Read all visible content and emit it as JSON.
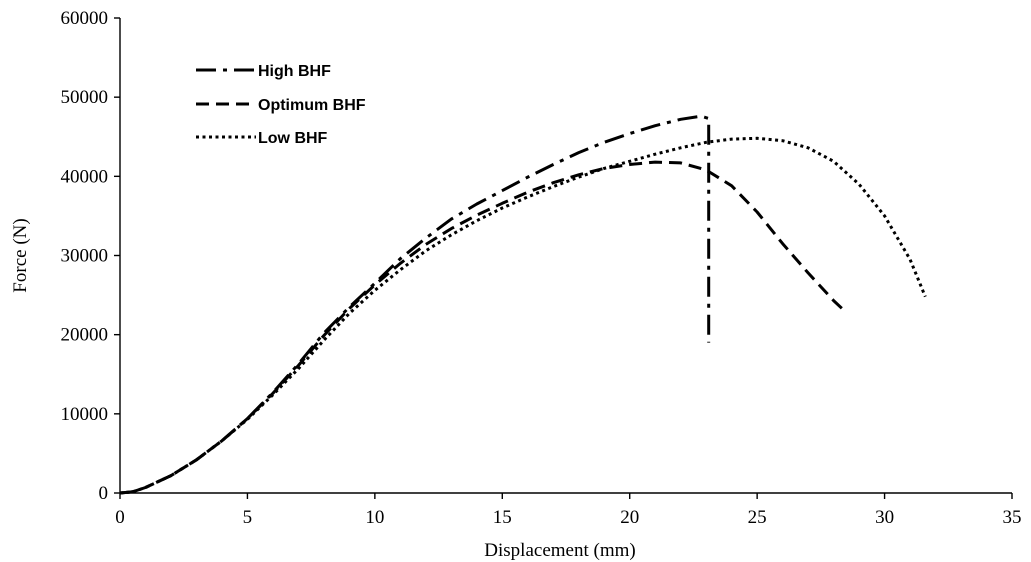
{
  "chart_data": {
    "type": "line",
    "title": "",
    "xlabel": "Displacement (mm)",
    "ylabel": "Force (N)",
    "xlim": [
      0,
      35
    ],
    "ylim": [
      0,
      60000
    ],
    "x_ticks": [
      "0",
      "5",
      "10",
      "15",
      "20",
      "25",
      "30",
      "35"
    ],
    "y_ticks": [
      "0",
      "10000",
      "20000",
      "30000",
      "40000",
      "50000",
      "60000"
    ],
    "grid": false,
    "legend_position": "top-left",
    "series": [
      {
        "name": "High BHF",
        "dash": "dash-dot",
        "color": "#000000",
        "x": [
          0,
          0.5,
          1,
          2,
          3,
          4,
          5,
          6,
          7,
          8,
          9,
          10,
          11,
          12,
          13,
          14,
          15,
          16,
          17,
          18,
          19,
          20,
          21,
          22,
          22.8,
          23.1,
          23.1
        ],
        "y": [
          0,
          150,
          700,
          2200,
          4200,
          6600,
          9400,
          12700,
          16300,
          20200,
          23500,
          26500,
          29600,
          32200,
          34600,
          36500,
          38200,
          39900,
          41500,
          43000,
          44300,
          45400,
          46400,
          47200,
          47600,
          47300,
          19000
        ]
      },
      {
        "name": "Optimum BHF",
        "dash": "dash",
        "color": "#000000",
        "x": [
          0,
          0.5,
          1,
          2,
          3,
          4,
          5,
          6,
          7,
          8,
          9,
          10,
          11,
          12,
          13,
          14,
          15,
          16,
          17,
          18,
          19,
          20,
          21,
          22,
          23,
          24,
          25,
          26,
          27,
          28,
          28.5
        ],
        "y": [
          0,
          150,
          700,
          2200,
          4200,
          6600,
          9400,
          12600,
          16100,
          19900,
          23300,
          26300,
          29000,
          31400,
          33400,
          35100,
          36600,
          38000,
          39200,
          40200,
          41000,
          41500,
          41800,
          41700,
          40800,
          38800,
          35500,
          31500,
          27800,
          24300,
          22800
        ]
      },
      {
        "name": "Low BHF",
        "dash": "dot",
        "color": "#000000",
        "x": [
          0,
          0.5,
          1,
          2,
          3,
          4,
          5,
          6,
          7,
          8,
          9,
          10,
          11,
          12,
          13,
          14,
          15,
          16,
          17,
          18,
          19,
          20,
          21,
          22,
          23,
          24,
          25,
          26,
          27,
          28,
          29,
          30,
          31,
          31.6
        ],
        "y": [
          0,
          150,
          700,
          2200,
          4200,
          6600,
          9300,
          12400,
          15700,
          19300,
          22700,
          25600,
          28200,
          30600,
          32600,
          34400,
          36000,
          37400,
          38700,
          39900,
          41000,
          41900,
          42800,
          43600,
          44300,
          44700,
          44800,
          44500,
          43600,
          41900,
          39000,
          35000,
          29500,
          24800
        ]
      }
    ]
  }
}
